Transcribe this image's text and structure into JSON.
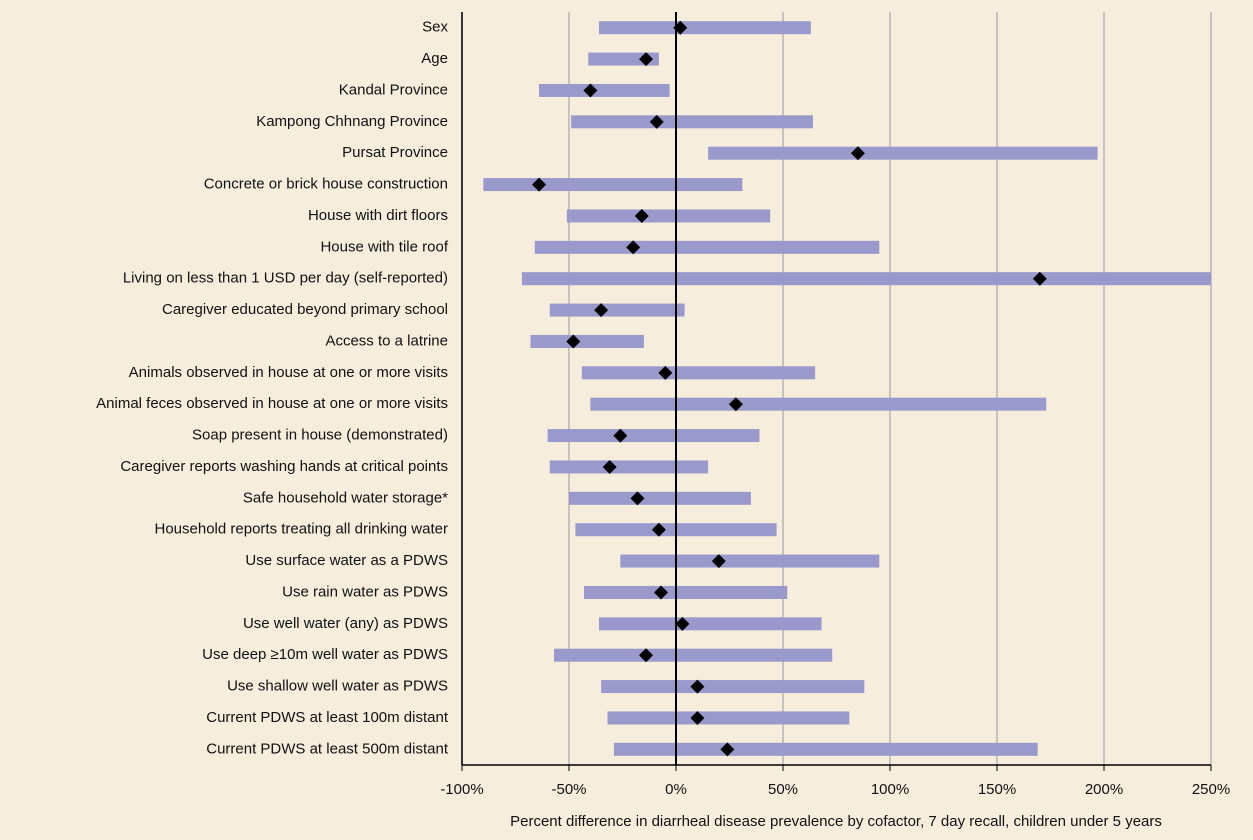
{
  "chart_data": {
    "type": "forest",
    "categories": [
      "Sex",
      "Age",
      "Kandal Province",
      "Kampong Chhnang Province",
      "Pursat Province",
      "Concrete or brick house construction",
      "House with dirt floors",
      "House with tile roof",
      "Living on less than 1 USD per day (self-reported)",
      "Caregiver educated beyond primary school",
      "Access to a latrine",
      "Animals observed in house at one or more visits",
      "Animal feces observed in house at one or more visits",
      "Soap present in house (demonstrated)",
      "Caregiver reports washing hands at critical points",
      "Safe household water storage*",
      "Household reports treating all drinking water ",
      "Use surface water as a PDWS",
      "Use rain water as PDWS",
      "Use well water (any) as PDWS",
      "Use deep ≥10m well water as PDWS",
      "Use shallow well water as PDWS",
      "Current PDWS at least 100m distant",
      "Current PDWS at least 500m distant"
    ],
    "lower": [
      -36,
      -41,
      -64,
      -49,
      15,
      -90,
      -51,
      -66,
      -72,
      -59,
      -68,
      -44,
      -40,
      -60,
      -59,
      -50,
      -47,
      -26,
      -43,
      -36,
      -57,
      -35,
      -32,
      -29
    ],
    "upper": [
      63,
      -8,
      -3,
      64,
      197,
      31,
      44,
      95,
      250,
      4,
      -15,
      65,
      173,
      39,
      15,
      35,
      47,
      95,
      52,
      68,
      73,
      88,
      81,
      169
    ],
    "estimate": [
      2,
      -14,
      -40,
      -9,
      85,
      -64,
      -16,
      -20,
      170,
      -35,
      -48,
      -5,
      28,
      -26,
      -31,
      -18,
      -8,
      20,
      -7,
      3,
      -14,
      10,
      10,
      24
    ],
    "bar_color": "#9999cc",
    "marker_color": "#000000",
    "xlim": [
      -100,
      250
    ],
    "xticks": [
      {
        "value": -100,
        "label": "-100%"
      },
      {
        "value": -50,
        "label": "-50%"
      },
      {
        "value": 0,
        "label": "0%"
      },
      {
        "value": 50,
        "label": "50%"
      },
      {
        "value": 100,
        "label": "100%"
      },
      {
        "value": 150,
        "label": "150%"
      },
      {
        "value": 200,
        "label": "200%"
      },
      {
        "value": 250,
        "label": "250%"
      }
    ],
    "xlabel": "Percent difference in diarrheal disease prevalence by cofactor, 7 day recall, children under 5 years",
    "grid": true
  }
}
